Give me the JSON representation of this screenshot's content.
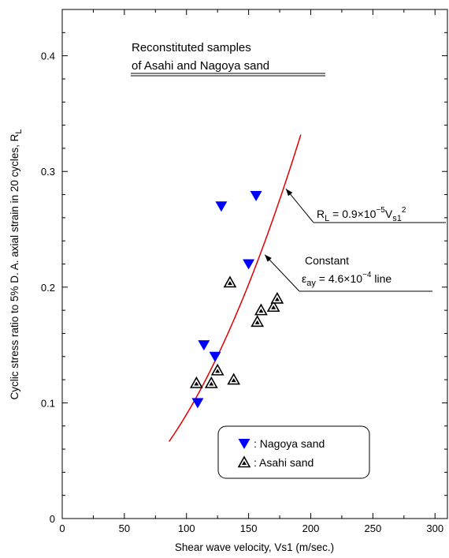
{
  "chart_data": {
    "type": "scatter",
    "title_line1": "Reconstituted samples",
    "title_line2": "of Asahi and Nagoya sand",
    "xlabel": "Shear wave velocity, Vs1 (m/sec.)",
    "ylabel": "Cyclic stress ratio to 5% D. A. axial strain in 20 cycles, R",
    "ylabel_sub": "L",
    "xlim": [
      0,
      310
    ],
    "ylim": [
      0,
      0.44
    ],
    "x_ticks": [
      0,
      50,
      100,
      150,
      200,
      250,
      300
    ],
    "x_tick_labels": [
      "0",
      "50",
      "100",
      "150",
      "200",
      "250",
      "300"
    ],
    "y_ticks": [
      0,
      0.1,
      0.2,
      0.3,
      0.4
    ],
    "y_tick_labels": [
      "0",
      "0.1",
      "0.2",
      "0.3",
      "0.4"
    ],
    "grid": false,
    "legend_position": "bottom-right",
    "series": [
      {
        "name": "Nagoya sand",
        "legend_label": ": Nagoya sand",
        "marker": "filled-down-triangle",
        "color": "#0000ff",
        "points": [
          {
            "x": 109,
            "y": 0.1
          },
          {
            "x": 114,
            "y": 0.15
          },
          {
            "x": 123,
            "y": 0.14
          },
          {
            "x": 128,
            "y": 0.27
          },
          {
            "x": 150,
            "y": 0.22
          },
          {
            "x": 156,
            "y": 0.279
          }
        ]
      },
      {
        "name": "Asahi sand",
        "legend_label": ": Asahi sand",
        "marker": "open-up-triangle-with-dot",
        "color": "#000000",
        "points": [
          {
            "x": 108,
            "y": 0.117
          },
          {
            "x": 120,
            "y": 0.117
          },
          {
            "x": 125,
            "y": 0.128
          },
          {
            "x": 135,
            "y": 0.204
          },
          {
            "x": 138,
            "y": 0.12
          },
          {
            "x": 157,
            "y": 0.17
          },
          {
            "x": 160,
            "y": 0.18
          },
          {
            "x": 170,
            "y": 0.183
          },
          {
            "x": 173,
            "y": 0.19
          }
        ]
      }
    ],
    "curve": {
      "color": "#e00000",
      "coefficient": 9e-06,
      "x_start": 86,
      "x_end": 192
    },
    "annotations": {
      "formula": {
        "lhs": "R",
        "lhs_sub": "L",
        "eq": " = 0.9",
        "times": "×",
        "ten": "10",
        "exp": "−5",
        "v": "V",
        "v_sub": "s1",
        "v_exp": "2",
        "arrow_target": {
          "x": 180,
          "y": 0.285
        }
      },
      "constant": {
        "line1": "Constant",
        "eps": "ε",
        "eps_sub": "ay",
        "rest": " = 4.6",
        "times": "×",
        "ten": "10",
        "exp": "−4",
        "tail": " line",
        "arrow_target": {
          "x": 163,
          "y": 0.228
        }
      }
    }
  }
}
